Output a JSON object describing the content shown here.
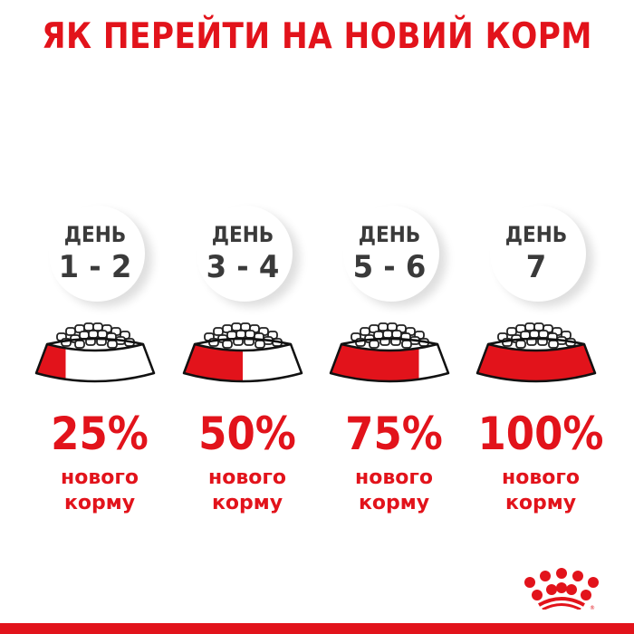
{
  "title": "ЯК ПЕРЕЙТИ НА НОВИЙ КОРМ",
  "brand_color": "#e2131b",
  "steps": [
    {
      "day_label": "ДЕНЬ",
      "days": "1 - 2",
      "percent": "25%",
      "new_fraction": 0.25,
      "line1": "нового",
      "line2": "корму"
    },
    {
      "day_label": "ДЕНЬ",
      "days": "3 - 4",
      "percent": "50%",
      "new_fraction": 0.5,
      "line1": "нового",
      "line2": "корму"
    },
    {
      "day_label": "ДЕНЬ",
      "days": "5 - 6",
      "percent": "75%",
      "new_fraction": 0.75,
      "line1": "нового",
      "line2": "корму"
    },
    {
      "day_label": "ДЕНЬ",
      "days": "7",
      "percent": "100%",
      "new_fraction": 1.0,
      "line1": "нового",
      "line2": "корму"
    }
  ],
  "logo": {
    "icon": "royal-canin-crown-icon",
    "mark": "®"
  }
}
